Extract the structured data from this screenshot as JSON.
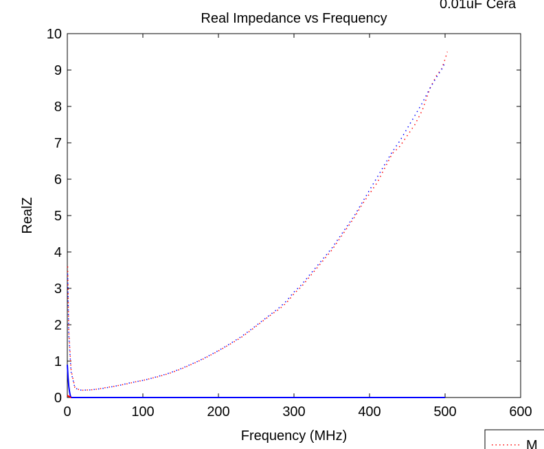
{
  "chart_data": {
    "type": "line",
    "title": "Real Impedance vs Frequency",
    "corner_text": "0.01uF Cera",
    "xlabel": "Frequency (MHz)",
    "ylabel": "RealZ",
    "xlim": [
      0,
      600
    ],
    "ylim": [
      0,
      10
    ],
    "xticks": [
      "0",
      "100",
      "200",
      "300",
      "400",
      "500",
      "600"
    ],
    "yticks": [
      "0",
      "1",
      "2",
      "3",
      "4",
      "5",
      "6",
      "7",
      "8",
      "9",
      "10"
    ],
    "grid": false,
    "legend": {
      "placement": "bottom-right",
      "entries": [
        "M"
      ]
    },
    "series": [
      {
        "name": "M",
        "color": "#ff0000",
        "style": "dotted",
        "x": [
          0.5,
          2,
          5,
          10,
          15,
          20,
          30,
          40,
          50,
          60,
          70,
          80,
          90,
          100,
          110,
          120,
          130,
          140,
          150,
          160,
          170,
          180,
          190,
          200,
          210,
          220,
          230,
          240,
          250,
          260,
          270,
          280,
          290,
          300,
          310,
          320,
          330,
          340,
          350,
          360,
          370,
          380,
          390,
          400,
          410,
          420,
          430,
          440,
          450,
          460,
          470,
          480,
          490,
          495,
          500,
          503
        ],
        "y": [
          3.6,
          1.8,
          0.75,
          0.28,
          0.22,
          0.2,
          0.21,
          0.23,
          0.27,
          0.3,
          0.34,
          0.38,
          0.43,
          0.47,
          0.52,
          0.57,
          0.63,
          0.7,
          0.78,
          0.87,
          0.96,
          1.06,
          1.17,
          1.28,
          1.4,
          1.52,
          1.65,
          1.8,
          1.96,
          2.12,
          2.28,
          2.42,
          2.6,
          2.85,
          3.05,
          3.3,
          3.55,
          3.8,
          4.05,
          4.35,
          4.65,
          4.95,
          5.3,
          5.6,
          5.9,
          6.3,
          6.7,
          6.9,
          7.2,
          7.5,
          7.9,
          8.5,
          8.9,
          9.0,
          9.3,
          9.5
        ]
      },
      {
        "name": "",
        "color": "#0000ff",
        "style": "dotted",
        "x": [
          0.5,
          2,
          5,
          10,
          15,
          20,
          30,
          40,
          50,
          60,
          70,
          80,
          90,
          100,
          110,
          120,
          130,
          140,
          150,
          160,
          170,
          180,
          190,
          200,
          210,
          220,
          230,
          240,
          250,
          260,
          270,
          280,
          290,
          300,
          310,
          320,
          330,
          340,
          350,
          360,
          370,
          380,
          390,
          400,
          410,
          420,
          430,
          440,
          450,
          460,
          470,
          480,
          490,
          495,
          500
        ],
        "y": [
          3.4,
          1.7,
          0.7,
          0.27,
          0.21,
          0.2,
          0.21,
          0.23,
          0.26,
          0.3,
          0.34,
          0.39,
          0.43,
          0.47,
          0.52,
          0.58,
          0.64,
          0.71,
          0.79,
          0.88,
          0.97,
          1.07,
          1.18,
          1.29,
          1.41,
          1.54,
          1.67,
          1.82,
          1.98,
          2.14,
          2.3,
          2.46,
          2.65,
          2.9,
          3.1,
          3.35,
          3.6,
          3.85,
          4.1,
          4.4,
          4.7,
          5.0,
          5.35,
          5.7,
          6.05,
          6.4,
          6.75,
          7.05,
          7.4,
          7.75,
          8.1,
          8.5,
          8.85,
          9.0,
          9.2
        ]
      },
      {
        "name": "",
        "color": "#0000ff",
        "style": "solid",
        "x": [
          0,
          1,
          2,
          3,
          4,
          5,
          500
        ],
        "y": [
          0.9,
          0.55,
          0.3,
          0.15,
          0.05,
          0.0,
          0.0
        ]
      },
      {
        "name": "",
        "color": "#ff0000",
        "style": "solid",
        "x": [
          0,
          2,
          4,
          5
        ],
        "y": [
          0.06,
          0.03,
          0.01,
          0.0
        ]
      }
    ]
  }
}
